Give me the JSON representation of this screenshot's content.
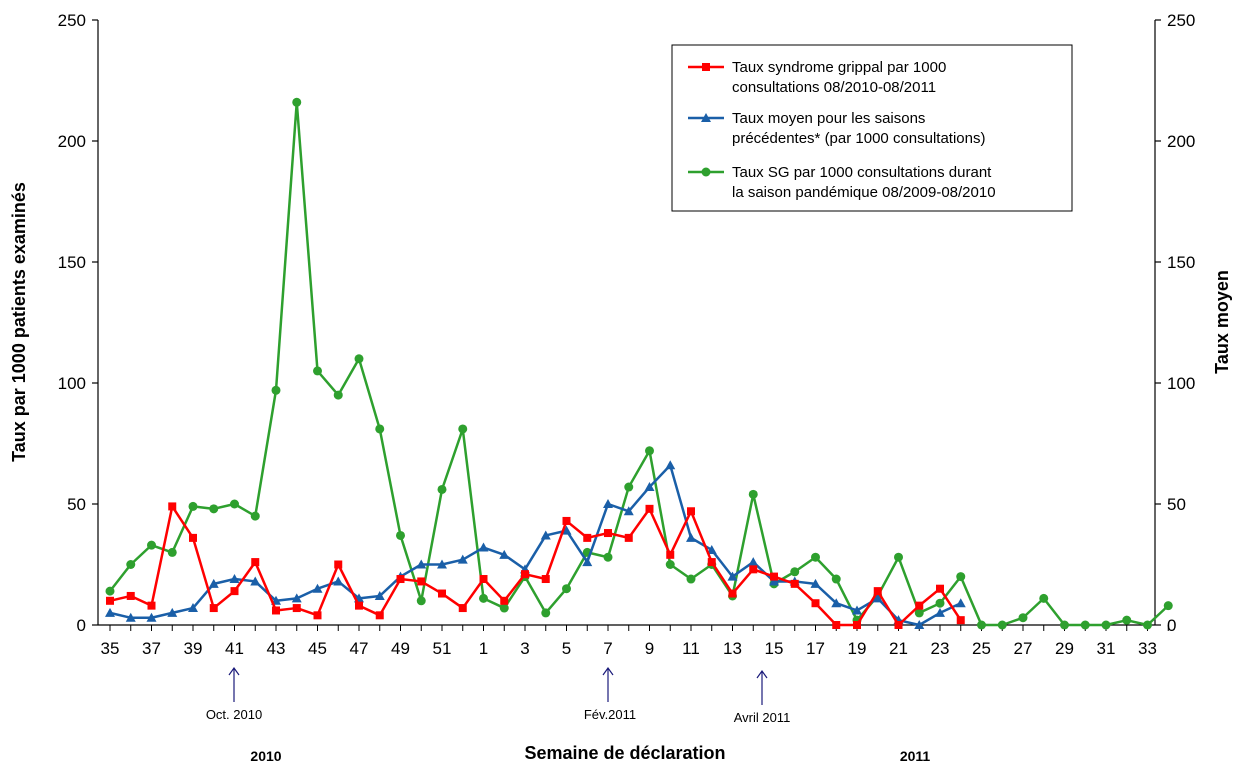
{
  "chart_data": {
    "type": "line",
    "ylabel_left": "Taux par 1000 patients examinés",
    "ylabel_right": "Taux moyen",
    "xlabel": "Semaine de déclaration",
    "ylim": [
      0,
      250
    ],
    "yticks": [
      0,
      50,
      100,
      150,
      200,
      250
    ],
    "x": [
      35,
      36,
      37,
      38,
      39,
      40,
      41,
      42,
      43,
      44,
      45,
      46,
      47,
      48,
      49,
      50,
      51,
      52,
      1,
      2,
      3,
      4,
      5,
      6,
      7,
      8,
      9,
      10,
      11,
      12,
      13,
      14,
      15,
      16,
      17,
      18,
      19,
      20,
      21,
      22,
      23,
      24,
      25,
      26,
      27,
      28,
      29,
      30,
      31,
      32,
      33,
      34
    ],
    "x_tick_labels": [
      "35",
      "37",
      "39",
      "41",
      "43",
      "45",
      "47",
      "49",
      "51",
      "1",
      "3",
      "5",
      "7",
      "9",
      "11",
      "13",
      "15",
      "17",
      "19",
      "21",
      "23",
      "25",
      "27",
      "29",
      "31",
      "33"
    ],
    "year_labels": [
      "2010",
      "2011"
    ],
    "annotations": [
      "Oct. 2010",
      "Fév.2011",
      "Avril 2011"
    ],
    "grid": false,
    "legend_position": "top-right",
    "series": [
      {
        "name": "Taux syndrome grippal par 1000 consultations 08/2010-08/2011",
        "color": "#ff0000",
        "marker": "square",
        "values": [
          10,
          12,
          8,
          49,
          36,
          7,
          14,
          26,
          6,
          7,
          4,
          25,
          8,
          4,
          19,
          18,
          13,
          7,
          19,
          10,
          21,
          19,
          43,
          36,
          38,
          36,
          48,
          29,
          47,
          26,
          13,
          23,
          20,
          17,
          9,
          0,
          0,
          14,
          0,
          8,
          15,
          2,
          null,
          null,
          null,
          null,
          null,
          null,
          null,
          null,
          null,
          null
        ]
      },
      {
        "name": "Taux moyen pour les saisons précédentes* (par 1000 consultations)",
        "color": "#1a5fa8",
        "marker": "triangle",
        "values": [
          5,
          3,
          3,
          5,
          7,
          17,
          19,
          18,
          10,
          11,
          15,
          18,
          11,
          12,
          20,
          25,
          25,
          27,
          32,
          29,
          23,
          37,
          39,
          26,
          50,
          47,
          57,
          66,
          36,
          31,
          20,
          26,
          18,
          18,
          17,
          9,
          6,
          11,
          2,
          0,
          5,
          9,
          null,
          null,
          null,
          null,
          null,
          null,
          null,
          null,
          null,
          null
        ]
      },
      {
        "name": "Taux SG  par 1000 consultations durant la saison pandémique 08/2009-08/2010",
        "color": "#2ea02e",
        "marker": "circle",
        "values": [
          14,
          25,
          33,
          30,
          49,
          48,
          50,
          45,
          97,
          216,
          105,
          95,
          110,
          81,
          37,
          10,
          56,
          81,
          11,
          7,
          20,
          5,
          15,
          30,
          28,
          57,
          72,
          25,
          19,
          25,
          12,
          54,
          17,
          22,
          28,
          19,
          2,
          12,
          28,
          5,
          9,
          20,
          0,
          0,
          3,
          11,
          0,
          0,
          0,
          2,
          0,
          8
        ]
      }
    ]
  },
  "legend": {
    "line1": [
      "Taux syndrome grippal par 1000",
      "consultations 08/2010-08/2011"
    ],
    "line2": [
      "Taux moyen pour les saisons",
      "précédentes* (par 1000 consultations)"
    ],
    "line3": [
      "Taux SG  par 1000 consultations durant",
      "la saison pandémique 08/2009-08/2010"
    ]
  }
}
